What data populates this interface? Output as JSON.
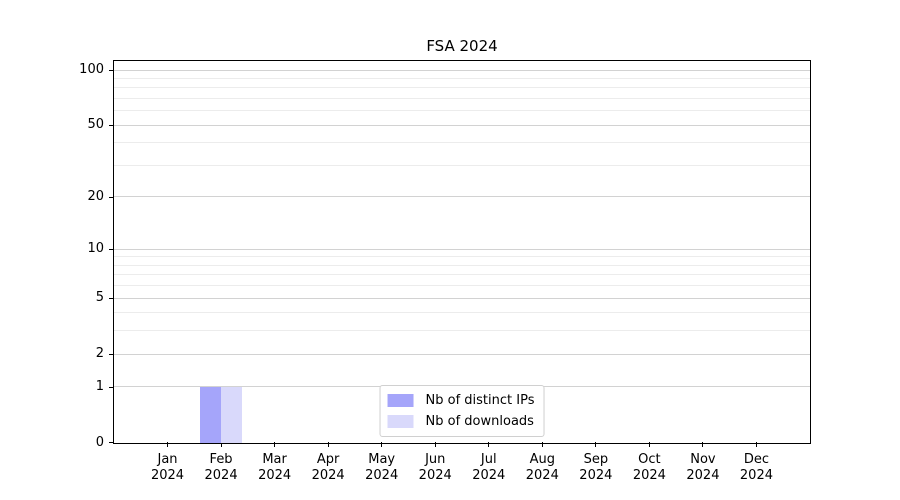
{
  "chart_data": {
    "type": "bar",
    "title": "FSA 2024",
    "categories": [
      {
        "month": "Jan",
        "year": "2024"
      },
      {
        "month": "Feb",
        "year": "2024"
      },
      {
        "month": "Mar",
        "year": "2024"
      },
      {
        "month": "Apr",
        "year": "2024"
      },
      {
        "month": "May",
        "year": "2024"
      },
      {
        "month": "Jun",
        "year": "2024"
      },
      {
        "month": "Jul",
        "year": "2024"
      },
      {
        "month": "Aug",
        "year": "2024"
      },
      {
        "month": "Sep",
        "year": "2024"
      },
      {
        "month": "Oct",
        "year": "2024"
      },
      {
        "month": "Nov",
        "year": "2024"
      },
      {
        "month": "Dec",
        "year": "2024"
      }
    ],
    "series": [
      {
        "name": "Nb of distinct IPs",
        "color": "#a5a5fa",
        "values": [
          0,
          1,
          0,
          0,
          0,
          0,
          0,
          0,
          0,
          0,
          0,
          0
        ]
      },
      {
        "name": "Nb of downloads",
        "color": "#d9d9fb",
        "values": [
          0,
          1,
          0,
          0,
          0,
          0,
          0,
          0,
          0,
          0,
          0,
          0
        ]
      }
    ],
    "y_axis": {
      "scale": "log1p",
      "max": 100,
      "major_ticks": [
        0,
        1,
        2,
        5,
        10,
        20,
        50,
        100
      ],
      "minor_ticks": [
        3,
        4,
        6,
        7,
        8,
        9,
        30,
        40,
        60,
        70,
        80,
        90
      ]
    },
    "legend": {
      "position": "lower center"
    },
    "grid": true
  },
  "colors": {
    "major_grid": "#d2d2d2",
    "minor_grid": "#ececec",
    "axis": "#000000",
    "legend_border": "#d0d0d0",
    "background": "#ffffff"
  }
}
